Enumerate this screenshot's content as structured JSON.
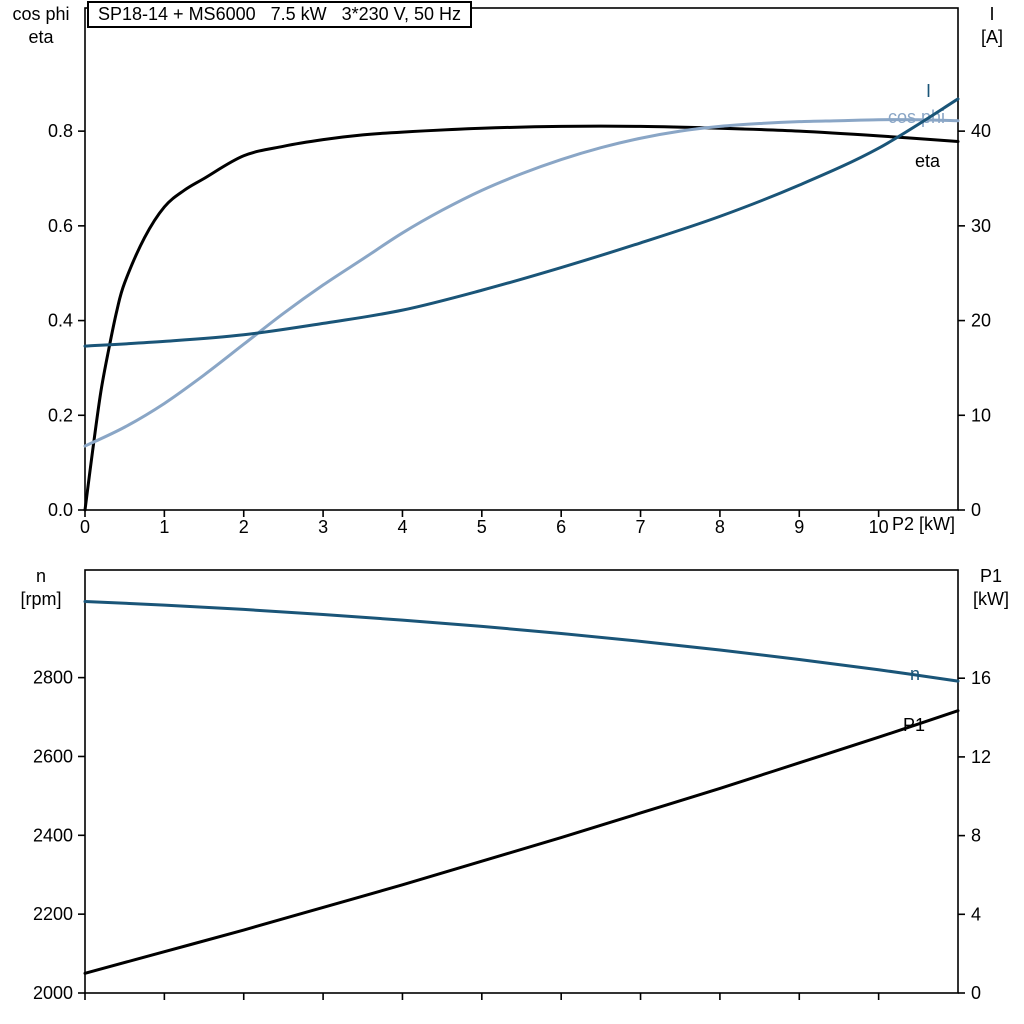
{
  "title": "SP18-14 + MS6000   7.5 kW   3*230 V, 50 Hz",
  "colors": {
    "axis": "#000000",
    "eta": "#000000",
    "cos_phi": "#8aa6c6",
    "current": "#1a5578",
    "speed": "#1a5578",
    "p1": "#000000",
    "background": "#ffffff"
  },
  "chart_data": [
    {
      "type": "line",
      "title": "SP18-14 + MS6000   7.5 kW   3*230 V, 50 Hz",
      "axes": {
        "x_title": "P2 [kW]",
        "left_title_lines": [
          "cos phi",
          "eta"
        ],
        "right_title_lines": [
          "I",
          "[A]"
        ],
        "x_range": [
          0,
          11
        ],
        "y_left_range": [
          0,
          1.06
        ],
        "y_right_range": [
          0,
          53
        ],
        "x_ticks": [
          "0",
          "1",
          "2",
          "3",
          "4",
          "5",
          "6",
          "7",
          "8",
          "9",
          "10"
        ],
        "x_tick_values": [
          0,
          1,
          2,
          3,
          4,
          5,
          6,
          7,
          8,
          9,
          10
        ],
        "y_left_ticks": [
          "0.0",
          "0.2",
          "0.4",
          "0.6",
          "0.8"
        ],
        "y_left_tick_values": [
          0,
          0.2,
          0.4,
          0.6,
          0.8
        ],
        "y_right_ticks": [
          "0",
          "10",
          "20",
          "30",
          "40"
        ],
        "y_right_tick_values": [
          0,
          10,
          20,
          30,
          40
        ],
        "grid": false,
        "legend": "curve-end-labels"
      },
      "series": [
        {
          "name": "eta",
          "axis": "left",
          "color_key": "eta",
          "x": [
            0,
            0.1,
            0.2,
            0.3,
            0.4,
            0.5,
            0.75,
            1,
            1.25,
            1.5,
            2,
            2.5,
            3,
            3.5,
            4,
            5,
            6,
            7,
            8,
            9,
            10,
            11
          ],
          "y": [
            0,
            0.13,
            0.25,
            0.34,
            0.42,
            0.48,
            0.575,
            0.64,
            0.675,
            0.7,
            0.748,
            0.768,
            0.782,
            0.792,
            0.798,
            0.806,
            0.81,
            0.81,
            0.806,
            0.8,
            0.79,
            0.778
          ]
        },
        {
          "name": "cos phi",
          "axis": "left",
          "color_key": "cos_phi",
          "x": [
            0,
            0.5,
            1,
            1.5,
            2,
            2.5,
            3,
            3.5,
            4,
            4.5,
            5,
            5.5,
            6,
            6.5,
            7,
            7.5,
            8,
            8.5,
            9,
            9.5,
            10,
            10.5,
            11
          ],
          "y": [
            0.135,
            0.175,
            0.225,
            0.285,
            0.35,
            0.415,
            0.475,
            0.53,
            0.585,
            0.633,
            0.675,
            0.71,
            0.74,
            0.765,
            0.785,
            0.8,
            0.81,
            0.816,
            0.82,
            0.822,
            0.824,
            0.824,
            0.822
          ]
        },
        {
          "name": "I",
          "axis": "right",
          "color_key": "current",
          "x": [
            0,
            1,
            2,
            3,
            4,
            5,
            6,
            7,
            8,
            9,
            10,
            11
          ],
          "y": [
            17.3,
            17.8,
            18.5,
            19.7,
            21.1,
            23.2,
            25.6,
            28.2,
            31.0,
            34.3,
            38.2,
            43.4
          ]
        }
      ]
    },
    {
      "type": "line",
      "title": "",
      "axes": {
        "x_title": "",
        "left_title_lines": [
          "n",
          "[rpm]"
        ],
        "right_title_lines": [
          "P1",
          "[kW]"
        ],
        "x_range": [
          0,
          11
        ],
        "y_left_range": [
          2000,
          3073
        ],
        "y_right_range": [
          0,
          21.5
        ],
        "x_ticks": [],
        "x_tick_values": [
          0,
          1,
          2,
          3,
          4,
          5,
          6,
          7,
          8,
          9,
          10
        ],
        "y_left_ticks": [
          "2000",
          "2200",
          "2400",
          "2600",
          "2800"
        ],
        "y_left_tick_values": [
          2000,
          2200,
          2400,
          2600,
          2800
        ],
        "y_right_ticks": [
          "0",
          "4",
          "8",
          "12",
          "16"
        ],
        "y_right_tick_values": [
          0,
          4,
          8,
          12,
          16
        ],
        "grid": false,
        "legend": "curve-end-labels"
      },
      "series": [
        {
          "name": "n",
          "axis": "left",
          "color_key": "speed",
          "x": [
            0,
            1,
            2,
            3,
            4,
            5,
            6,
            7,
            8,
            9,
            10,
            11
          ],
          "y": [
            2993,
            2984,
            2973,
            2960,
            2946,
            2930,
            2912,
            2892,
            2870,
            2846,
            2820,
            2791
          ]
        },
        {
          "name": "P1",
          "axis": "right",
          "color_key": "p1",
          "x": [
            0,
            1,
            2,
            3,
            4,
            5,
            6,
            7,
            8,
            9,
            10,
            11
          ],
          "y": [
            1.0,
            2.1,
            3.2,
            4.35,
            5.5,
            6.7,
            7.9,
            9.15,
            10.4,
            11.7,
            13.0,
            14.35
          ]
        }
      ]
    }
  ]
}
